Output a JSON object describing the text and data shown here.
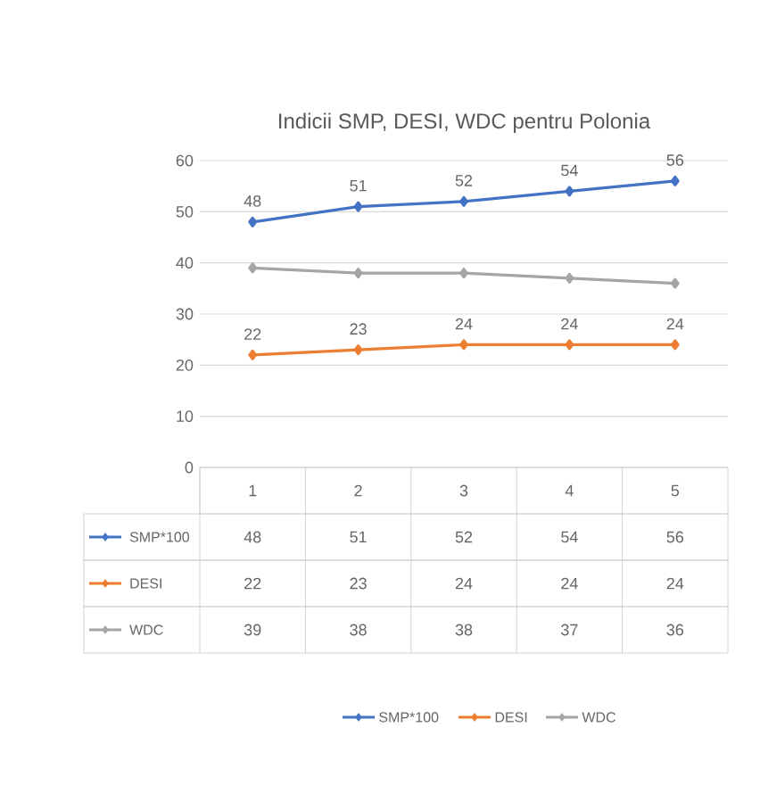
{
  "chart_data": {
    "type": "line",
    "title": "Indicii SMP, DESI, WDC pentru Polonia",
    "categories": [
      "1",
      "2",
      "3",
      "4",
      "5"
    ],
    "series": [
      {
        "name": "SMP*100",
        "color": "#4472c4",
        "values": [
          48,
          51,
          52,
          54,
          56
        ],
        "value_labels": [
          "48",
          "51",
          "52",
          "54",
          "56"
        ]
      },
      {
        "name": "DESI",
        "color": "#ed7d31",
        "values": [
          22,
          23,
          24,
          24,
          24
        ],
        "value_labels": [
          "22",
          "23",
          "24",
          "24",
          "24"
        ]
      },
      {
        "name": "WDC",
        "color": "#a5a5a5",
        "values": [
          39,
          38,
          38,
          37,
          36
        ]
      }
    ],
    "ylim": [
      0,
      60
    ],
    "yticks": [
      0,
      10,
      20,
      30,
      40,
      50,
      60
    ],
    "grid": "y",
    "legend": "bottom",
    "marker": "diamond",
    "line_style": "solid",
    "data_labels": true
  }
}
